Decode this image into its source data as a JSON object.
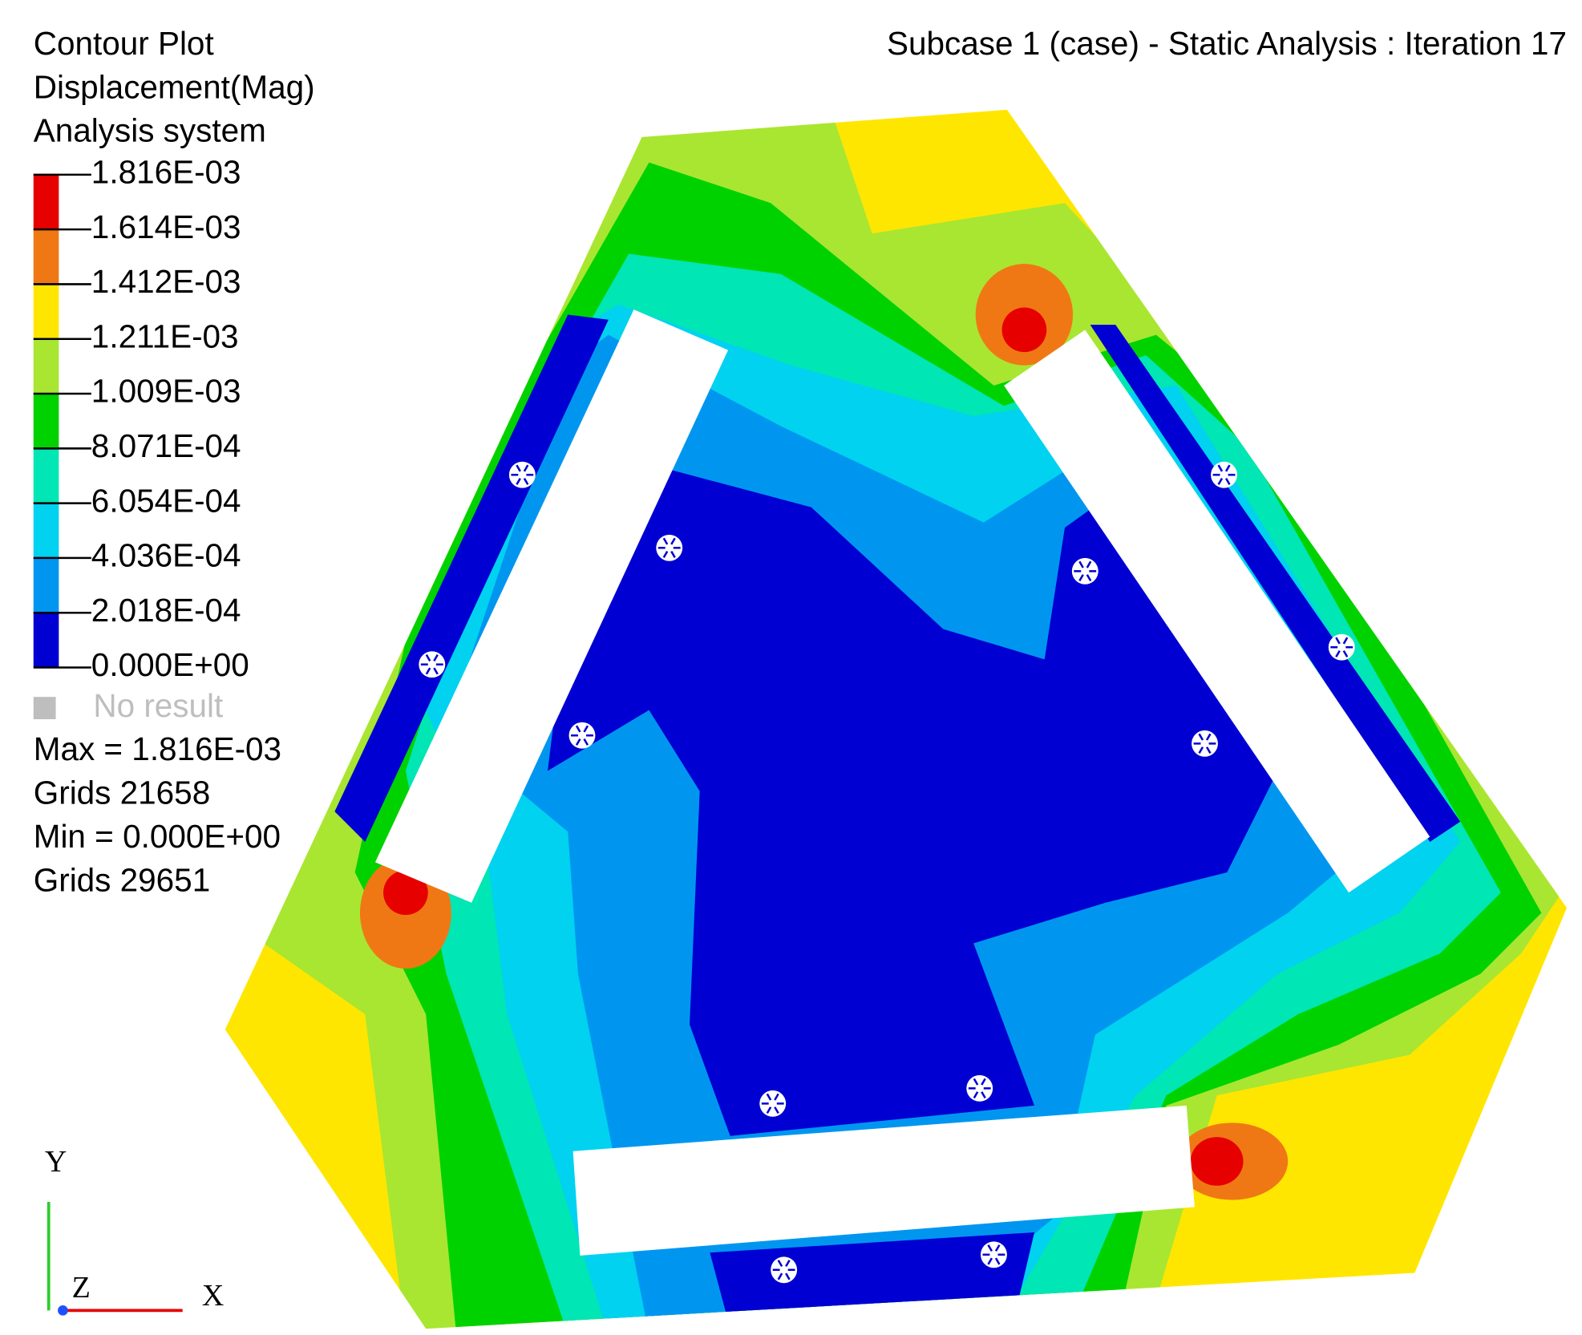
{
  "header": {
    "title_lines": [
      "Contour Plot",
      "Displacement(Mag)",
      "Analysis system"
    ],
    "subcase": "Subcase 1 (case) - Static Analysis : Iteration 17"
  },
  "legend": {
    "labels": [
      "1.816E-03",
      "1.614E-03",
      "1.412E-03",
      "1.211E-03",
      "1.009E-03",
      "8.071E-04",
      "6.054E-04",
      "4.036E-04",
      "2.018E-04",
      "0.000E+00"
    ],
    "colors": [
      "#e60000",
      "#f07814",
      "#ffe600",
      "#a8e632",
      "#00d200",
      "#00e6b4",
      "#00d2f0",
      "#0096f0",
      "#0000d2"
    ],
    "no_result": "No result",
    "no_result_color": "#bebebe"
  },
  "stats": [
    "Max = 1.816E-03",
    "Grids 21658",
    "Min = 0.000E+00",
    "Grids 29651"
  ],
  "triad": {
    "y": "Y",
    "z": "Z",
    "x": "X"
  }
}
